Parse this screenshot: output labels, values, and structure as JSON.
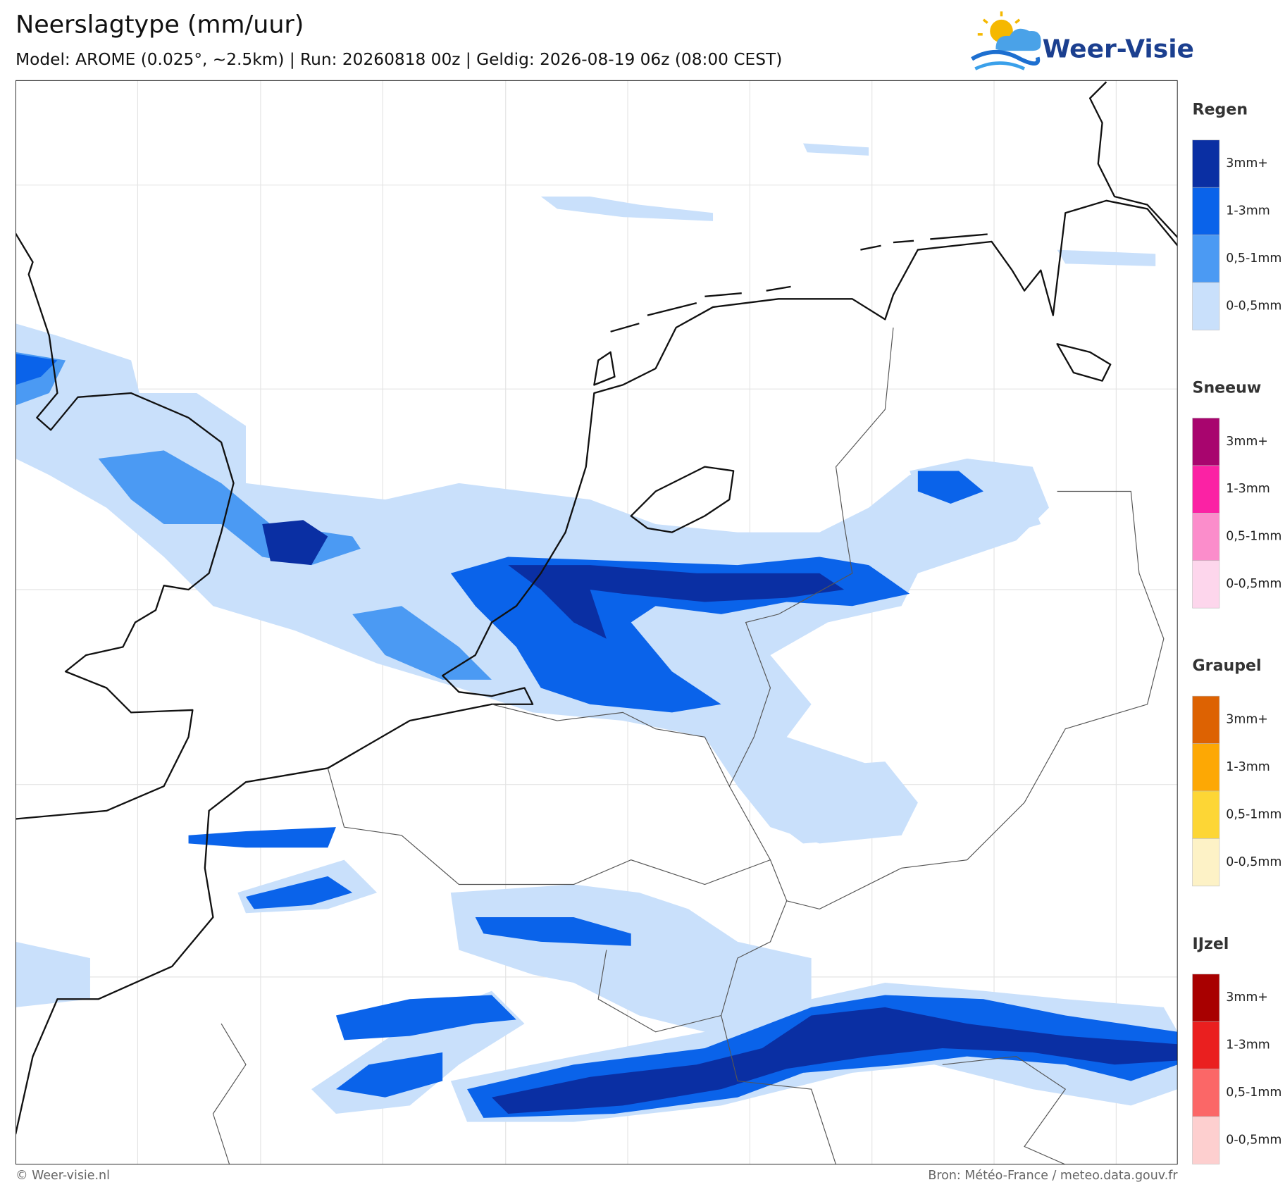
{
  "header": {
    "title": "Neerslagtype (mm/uur)",
    "subtitle": "Model: AROME (0.025°, ~2.5km)  |  Run: 20260818 00z  |  Geldig: 2026-08-19 06z (08:00 CEST)"
  },
  "logo": {
    "text": "Weer-Visie"
  },
  "legend": {
    "sections": [
      {
        "title": "Regen",
        "items": [
          {
            "label": "3mm+",
            "color": "#0a2fa3"
          },
          {
            "label": "1-3mm",
            "color": "#0a63ea"
          },
          {
            "label": "0,5-1mm",
            "color": "#4b9af3"
          },
          {
            "label": "0-0,5mm",
            "color": "#c9e0fb"
          }
        ]
      },
      {
        "title": "Sneeuw",
        "items": [
          {
            "label": "3mm+",
            "color": "#a8056e"
          },
          {
            "label": "1-3mm",
            "color": "#fb22a4"
          },
          {
            "label": "0,5-1mm",
            "color": "#fb8dcb"
          },
          {
            "label": "0-0,5mm",
            "color": "#fdd6ec"
          }
        ]
      },
      {
        "title": "Graupel",
        "items": [
          {
            "label": "3mm+",
            "color": "#dd6202"
          },
          {
            "label": "1-3mm",
            "color": "#fda804"
          },
          {
            "label": "0,5-1mm",
            "color": "#fdd635"
          },
          {
            "label": "0-0,5mm",
            "color": "#fdf2c6"
          }
        ]
      },
      {
        "title": "IJzel",
        "items": [
          {
            "label": "3mm+",
            "color": "#a80000"
          },
          {
            "label": "1-3mm",
            "color": "#ea1f1f"
          },
          {
            "label": "0,5-1mm",
            "color": "#fb6767"
          },
          {
            "label": "0-0,5mm",
            "color": "#fdcfcf"
          }
        ]
      }
    ]
  },
  "footer": {
    "left": "© Weer-visie.nl",
    "right": "Bron: Météo-France / meteo.data.gouv.fr"
  }
}
